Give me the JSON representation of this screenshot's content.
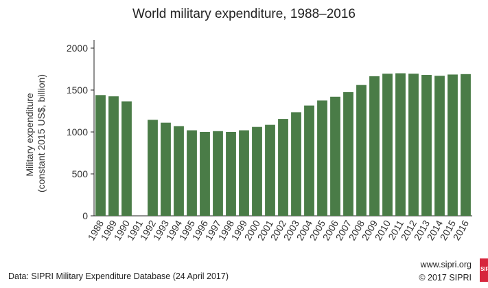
{
  "chart_data": {
    "type": "bar",
    "title": "World military expenditure, 1988–2016",
    "ylabel_line1": "Military expenditure",
    "ylabel_line2": "(constant 2015 US$, billion)",
    "xlabel": "",
    "ylim": [
      0,
      2000
    ],
    "yticks": [
      0,
      500,
      1000,
      1500,
      2000
    ],
    "categories": [
      "1988",
      "1989",
      "1990",
      "1991",
      "1992",
      "1993",
      "1994",
      "1995",
      "1996",
      "1997",
      "1998",
      "1999",
      "2000",
      "2001",
      "2002",
      "2003",
      "2004",
      "2005",
      "2006",
      "2007",
      "2008",
      "2009",
      "2010",
      "2011",
      "2012",
      "2013",
      "2014",
      "2015",
      "2016"
    ],
    "values": [
      1440,
      1425,
      1365,
      null,
      1145,
      1110,
      1070,
      1020,
      1000,
      1010,
      1000,
      1020,
      1060,
      1085,
      1155,
      1235,
      1315,
      1375,
      1420,
      1475,
      1560,
      1665,
      1695,
      1700,
      1695,
      1680,
      1670,
      1685,
      1690
    ],
    "bar_color": "#4a7c47",
    "grid": false,
    "legend": "none"
  },
  "footer": {
    "source": "Data: SIPRI Military Expenditure Database (24 April 2017)",
    "site": "www.sipri.org",
    "copyright": "© 2017 SIPRI",
    "logo": "SIPRI"
  }
}
